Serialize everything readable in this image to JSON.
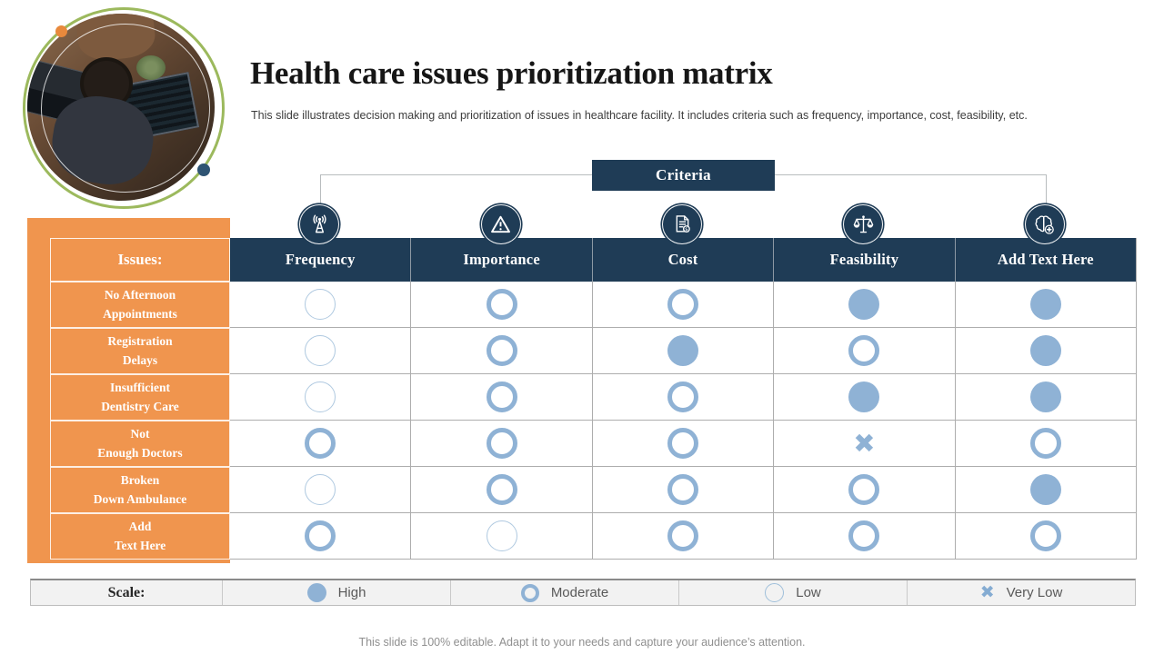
{
  "slide": {
    "title": "Health care issues prioritization matrix",
    "subtitle": "This slide illustrates decision making and prioritization of issues in healthcare facility. It includes criteria such as frequency, importance, cost, feasibility, etc.",
    "footer": "This slide is 100% editable. Adapt it to your needs and capture your audience’s attention."
  },
  "matrix": {
    "criteria_label": "Criteria",
    "issues_header": "Issues:",
    "columns": [
      {
        "label": "Frequency",
        "icon": "antenna-icon"
      },
      {
        "label": "Importance",
        "icon": "warning-icon"
      },
      {
        "label": "Cost",
        "icon": "invoice-icon"
      },
      {
        "label": "Feasibility",
        "icon": "scales-icon"
      },
      {
        "label": "Add Text Here",
        "icon": "brain-plus-icon"
      }
    ],
    "rows": [
      {
        "label_lines": [
          "No Afternoon",
          "Appointments"
        ],
        "ratings": [
          "low",
          "moderate",
          "moderate",
          "high",
          "high"
        ]
      },
      {
        "label_lines": [
          "Registration",
          "Delays"
        ],
        "ratings": [
          "low",
          "moderate",
          "high",
          "moderate",
          "high"
        ]
      },
      {
        "label_lines": [
          "Insufficient",
          "Dentistry Care"
        ],
        "ratings": [
          "low",
          "moderate",
          "moderate",
          "high",
          "high"
        ]
      },
      {
        "label_lines": [
          "Not",
          "Enough Doctors"
        ],
        "ratings": [
          "moderate",
          "moderate",
          "moderate",
          "very_low",
          "moderate"
        ]
      },
      {
        "label_lines": [
          "Broken",
          "Down Ambulance"
        ],
        "ratings": [
          "low",
          "moderate",
          "moderate",
          "moderate",
          "high"
        ]
      },
      {
        "label_lines": [
          "Add",
          "Text Here"
        ],
        "ratings": [
          "moderate",
          "low",
          "moderate",
          "moderate",
          "moderate"
        ]
      }
    ]
  },
  "legend": {
    "scale_label": "Scale:",
    "items": [
      {
        "label": "High",
        "marker": "high"
      },
      {
        "label": "Moderate",
        "marker": "moderate"
      },
      {
        "label": "Low",
        "marker": "low"
      },
      {
        "label": "Very Low",
        "marker": "very_low"
      }
    ]
  },
  "colors": {
    "orange": "#F0954E",
    "dark_blue": "#1F3C56",
    "marker_blue": "#8FB2D5",
    "low_ring": "#AFC9E0"
  }
}
